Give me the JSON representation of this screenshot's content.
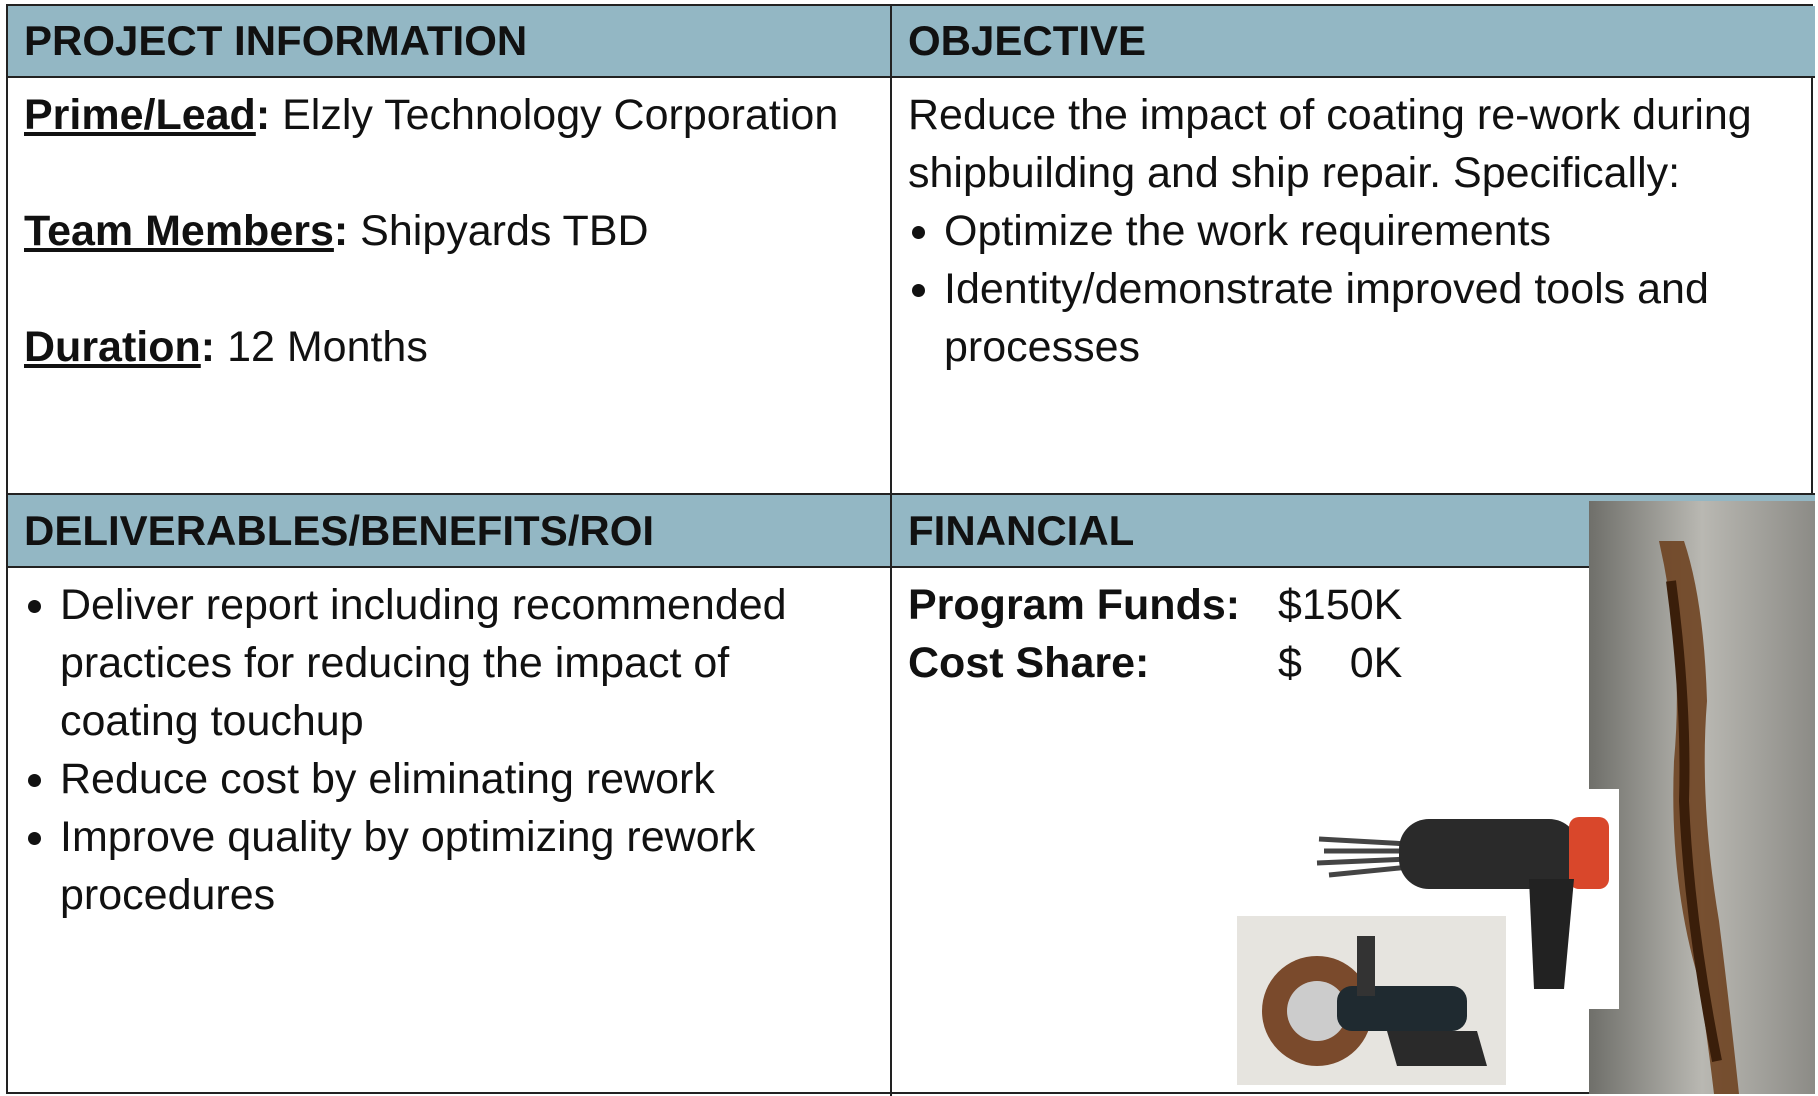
{
  "quadrants": [
    {
      "title": "PROJECT INFORMATION",
      "fields": [
        {
          "label": "Prime/Lead",
          "punct": ":",
          "text": "Elzly Technology Corporation"
        },
        {
          "label": "Team Members",
          "punct": ":",
          "text": "Shipyards TBD"
        },
        {
          "label": "Duration",
          "punct": ":",
          "text": "12 Months"
        }
      ]
    },
    {
      "title": "OBJECTIVE",
      "paragraph": "Reduce the impact of coating re-work during shipbuilding and ship repair. Specifically:",
      "bullets": [
        "Optimize the work requirements",
        "Identity/demonstrate improved tools and processes"
      ]
    },
    {
      "title": "DELIVERABLES/BENEFITS/ROI",
      "bullets": [
        "Deliver report including recommended practices for reducing the impact of coating touchup",
        "Reduce cost by eliminating rework",
        "Improve quality by optimizing rework procedures"
      ]
    },
    {
      "title": "FINANCIAL",
      "rows": [
        {
          "label": "Program Funds:",
          "value": "$150K"
        },
        {
          "label": "Cost Share:",
          "value": "$    0K"
        }
      ]
    }
  ]
}
